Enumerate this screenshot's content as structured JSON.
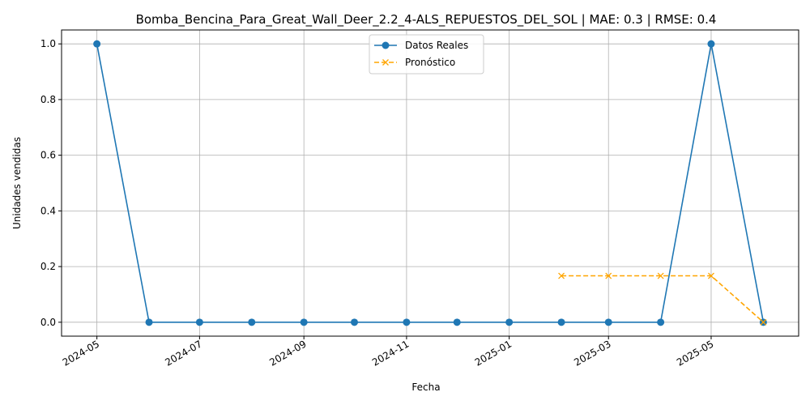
{
  "chart_data": {
    "type": "line",
    "title": "Bomba_Bencina_Para_Great_Wall_Deer_2.2_4-ALS_REPUESTOS_DEL_SOL | MAE: 0.3 | RMSE: 0.4",
    "xlabel": "Fecha",
    "ylabel": "Unidades vendidas",
    "x_ticks": [
      "2024-05",
      "2024-07",
      "2024-09",
      "2024-11",
      "2025-01",
      "2025-03",
      "2025-05"
    ],
    "y_ticks": [
      "0.0",
      "0.2",
      "0.4",
      "0.6",
      "0.8",
      "1.0"
    ],
    "ylim": [
      -0.05,
      1.05
    ],
    "xlim": [
      "2024-04-10",
      "2025-06-22"
    ],
    "grid": true,
    "legend_position": "top-center",
    "series": [
      {
        "name": "Datos Reales",
        "color": "#1f77b4",
        "marker": "circle",
        "line_style": "solid",
        "x": [
          "2024-05-01",
          "2024-06-01",
          "2024-07-01",
          "2024-08-01",
          "2024-09-01",
          "2024-10-01",
          "2024-11-01",
          "2024-12-01",
          "2025-01-01",
          "2025-02-01",
          "2025-03-01",
          "2025-04-01",
          "2025-05-01",
          "2025-06-01"
        ],
        "y": [
          1,
          0,
          0,
          0,
          0,
          0,
          0,
          0,
          0,
          0,
          0,
          0,
          1,
          0
        ]
      },
      {
        "name": "Pronóstico",
        "color": "#ffa500",
        "marker": "x",
        "line_style": "dashed",
        "x": [
          "2025-02-01",
          "2025-03-01",
          "2025-04-01",
          "2025-05-01",
          "2025-06-01"
        ],
        "y": [
          0.1667,
          0.1667,
          0.1667,
          0.1667,
          0.0
        ]
      }
    ]
  }
}
